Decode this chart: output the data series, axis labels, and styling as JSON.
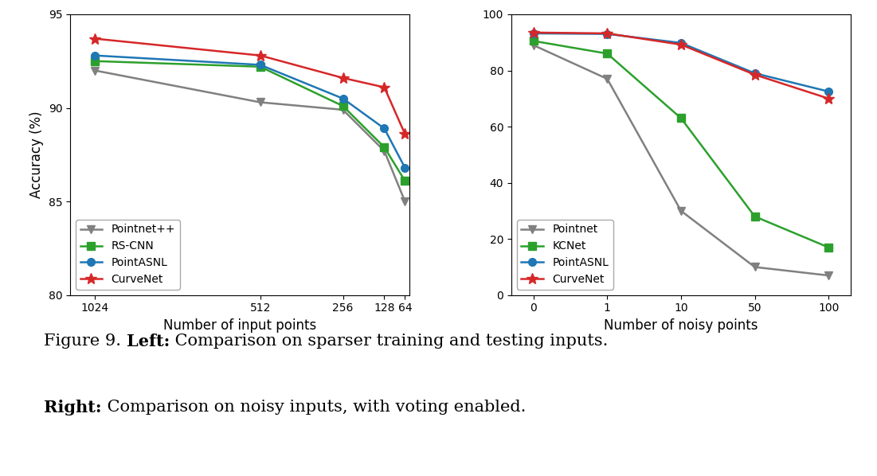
{
  "left": {
    "x_values": [
      1024,
      512,
      256,
      128,
      64
    ],
    "x_labels": [
      "1024",
      "512",
      "256",
      "128",
      "64"
    ],
    "series": [
      {
        "label": "Pointnet++",
        "color": "#808080",
        "marker": "v",
        "y": [
          92.0,
          90.3,
          89.9,
          87.7,
          85.0
        ]
      },
      {
        "label": "RS-CNN",
        "color": "#2ca02c",
        "marker": "s",
        "y": [
          92.5,
          92.2,
          90.1,
          87.9,
          86.1
        ]
      },
      {
        "label": "PointASNL",
        "color": "#1f77b4",
        "marker": "o",
        "y": [
          92.8,
          92.3,
          90.5,
          88.9,
          86.8
        ]
      },
      {
        "label": "CurveNet",
        "color": "#d62728",
        "marker": "*",
        "y": [
          93.7,
          92.8,
          91.6,
          91.1,
          88.6
        ]
      }
    ],
    "xlabel": "Number of input points",
    "ylabel": "Accuracy (%)",
    "ylim": [
      80,
      95
    ],
    "yticks": [
      80,
      85,
      90,
      95
    ]
  },
  "right": {
    "x_values": [
      0,
      1,
      2,
      3,
      4
    ],
    "x_labels": [
      "0",
      "1",
      "10",
      "50",
      "100"
    ],
    "series": [
      {
        "label": "Pointnet",
        "color": "#808080",
        "marker": "v",
        "y": [
          89.0,
          77.0,
          30.0,
          10.0,
          7.0
        ]
      },
      {
        "label": "KCNet",
        "color": "#2ca02c",
        "marker": "s",
        "y": [
          90.5,
          86.0,
          63.0,
          28.0,
          17.0
        ]
      },
      {
        "label": "PointASNL",
        "color": "#1f77b4",
        "marker": "o",
        "y": [
          93.2,
          93.0,
          89.8,
          79.0,
          72.5
        ]
      },
      {
        "label": "CurveNet",
        "color": "#d62728",
        "marker": "*",
        "y": [
          93.5,
          93.2,
          89.2,
          78.5,
          70.0
        ]
      }
    ],
    "xlabel": "Number of noisy points",
    "ylabel": "Accuracy (%)",
    "ylim": [
      0,
      100
    ],
    "yticks": [
      0,
      20,
      40,
      60,
      80,
      100
    ]
  },
  "caption": {
    "line1_pre": "Figure 9. ",
    "line1_bold": "Left:",
    "line1_post": " Comparison on sparser training and testing inputs.",
    "line2_bold": "Right:",
    "line2_post": " Comparison on noisy inputs, with voting enabled."
  },
  "background_color": "#ffffff",
  "marker_size": 7,
  "marker_size_star": 10,
  "line_width": 1.8,
  "legend_fontsize": 10,
  "axis_fontsize": 12,
  "tick_fontsize": 10,
  "caption_fontsize": 15
}
